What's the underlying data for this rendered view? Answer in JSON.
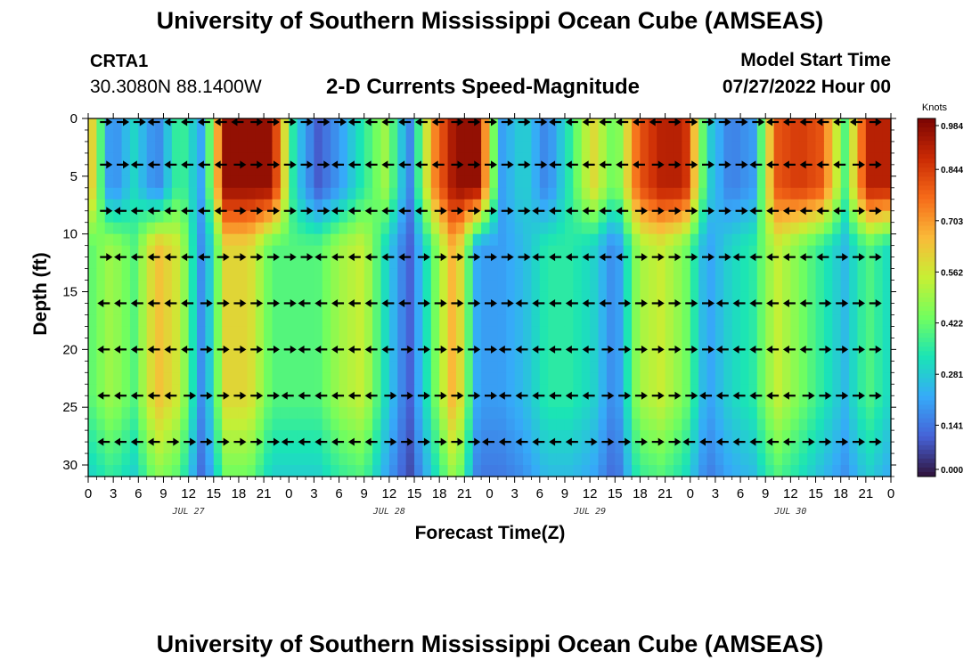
{
  "header": {
    "title": "University of Southern Mississippi Ocean Cube (AMSEAS)",
    "station_id": "CRTA1",
    "station_coords": "30.3080N  88.1400W",
    "chart_title": "2-D Currents Speed-Magnitude",
    "start_label": "Model Start Time",
    "start_value": "07/27/2022 Hour 00"
  },
  "footer": {
    "title_repeat": "University of Southern Mississippi Ocean Cube (AMSEAS)"
  },
  "colors": {
    "background": "#ffffff",
    "arrow": "#000000",
    "colormap": [
      "#30123b",
      "#4662d7",
      "#36aaf9",
      "#1ae4b6",
      "#72fe5e",
      "#c7ef34",
      "#faba39",
      "#f66b19",
      "#ca2a04",
      "#7a0403"
    ]
  },
  "chart_data": {
    "type": "heatmap",
    "title": "2-D Currents Speed-Magnitude",
    "xlabel": "Forecast Time(Z)",
    "ylabel": "Depth (ft)",
    "x_range_hours": [
      0,
      96
    ],
    "y_range_ft": [
      0,
      31
    ],
    "y_inverted": true,
    "x_ticks": [
      "0",
      "3",
      "6",
      "9",
      "12",
      "15",
      "18",
      "21",
      "0",
      "3",
      "6",
      "9",
      "12",
      "15",
      "18",
      "21",
      "0",
      "3",
      "6",
      "9",
      "12",
      "15",
      "18",
      "21",
      "0",
      "3",
      "6",
      "9",
      "12",
      "15",
      "18",
      "21",
      "0"
    ],
    "y_ticks": [
      "0",
      "5",
      "10",
      "15",
      "20",
      "25",
      "30"
    ],
    "date_labels": [
      "JUL 27",
      "JUL 28",
      "JUL 29",
      "JUL 30"
    ],
    "colorbar": {
      "unit": "Knots",
      "ticks": [
        "0.984",
        "0.844",
        "0.703",
        "0.562",
        "0.422",
        "0.281",
        "0.141",
        "0.000"
      ],
      "range": [
        0.0,
        0.984
      ]
    },
    "speed_profile": {
      "depth_break_ft": 8,
      "upper_layer_knots": [
        0.7,
        0.15,
        0.3,
        0.15,
        0.4,
        0.2,
        0.95,
        0.95,
        0.95,
        0.3,
        0.1,
        0.2,
        0.35,
        0.5,
        0.15,
        0.7,
        0.95,
        0.95,
        0.2,
        0.3,
        0.15,
        0.35,
        0.6,
        0.4,
        0.8,
        0.9,
        0.9,
        0.3,
        0.15,
        0.2,
        0.8,
        0.85,
        0.8,
        0.4,
        0.9,
        0.9
      ],
      "lower_layer_knots": [
        0.4,
        0.5,
        0.4,
        0.65,
        0.55,
        0.15,
        0.6,
        0.6,
        0.4,
        0.4,
        0.4,
        0.5,
        0.55,
        0.3,
        0.1,
        0.4,
        0.7,
        0.2,
        0.2,
        0.25,
        0.35,
        0.35,
        0.3,
        0.15,
        0.5,
        0.55,
        0.45,
        0.2,
        0.3,
        0.35,
        0.55,
        0.45,
        0.35,
        0.25,
        0.4,
        0.3
      ]
    },
    "vectors": {
      "depth_rows_ft": [
        0,
        4,
        8,
        12,
        16,
        20,
        24,
        28
      ],
      "time_step_hours": 2,
      "pattern": "alternating eastward/westward bands following the tidal cycle"
    }
  }
}
